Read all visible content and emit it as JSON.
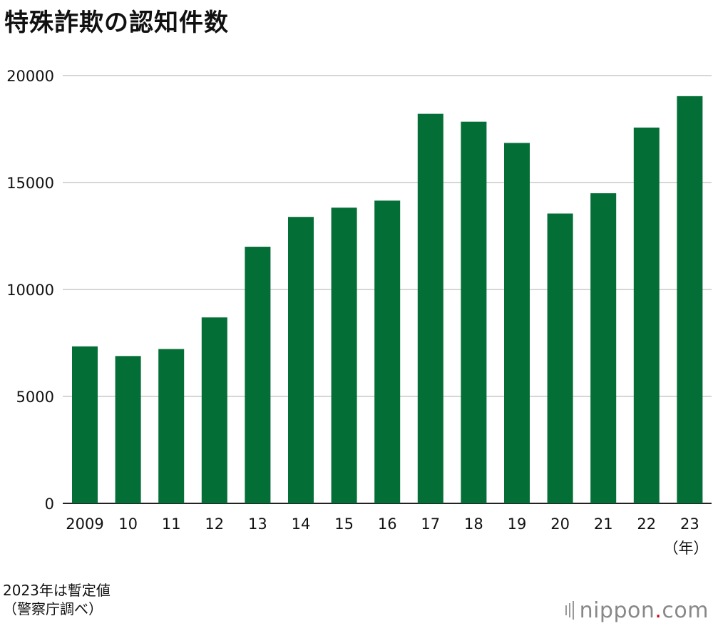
{
  "title": "特殊詐欺の認知件数",
  "notes": [
    "2023年は暫定値",
    "（警察庁調べ）"
  ],
  "unit_label": "（年）",
  "logo": {
    "name": "nippon",
    "dot": ".",
    "tld": "com"
  },
  "colors": {
    "bar": "#036e35",
    "grid": "#c8c8c8",
    "axis": "#222222"
  },
  "chart_data": {
    "type": "bar",
    "title": "特殊詐欺の認知件数",
    "categories": [
      "2009",
      "10",
      "11",
      "12",
      "13",
      "14",
      "15",
      "16",
      "17",
      "18",
      "19",
      "20",
      "21",
      "22",
      "23"
    ],
    "values": [
      7340,
      6888,
      7216,
      8693,
      11998,
      13392,
      13824,
      14154,
      18212,
      17844,
      16851,
      13550,
      14498,
      17570,
      19038
    ],
    "yticks": [
      0,
      5000,
      10000,
      15000,
      20000
    ],
    "ylim": [
      0,
      20000
    ],
    "grid": true,
    "legend": "none"
  }
}
